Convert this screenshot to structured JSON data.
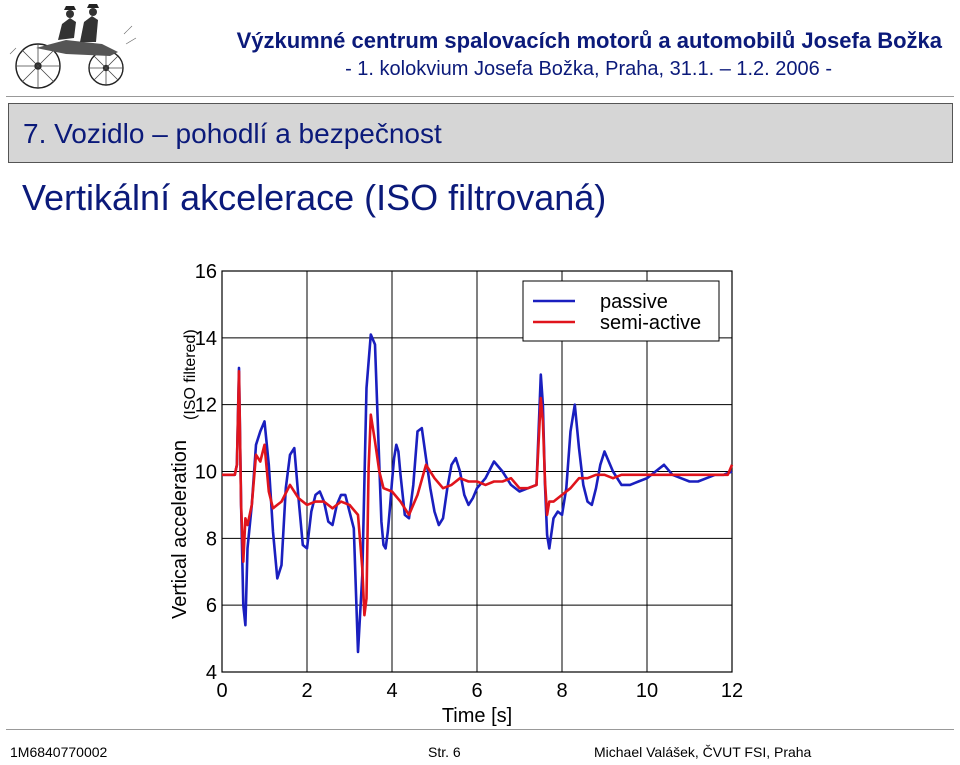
{
  "header": {
    "title": "Výzkumné centrum spalovacích motorů a automobilů Josefa Božka",
    "subtitle": "- 1. kolokvium Josefa Božka, Praha, 31.1. – 1.2. 2006 -"
  },
  "section": {
    "title": "7. Vozidlo – pohodlí a bezpečnost"
  },
  "slide": {
    "title": "Vertikální akcelerace (ISO filtrovaná)"
  },
  "footer": {
    "left": "1M6840770002",
    "center": "Str. 6",
    "right": "Michael Valášek, ČVUT FSI, Praha"
  },
  "colors": {
    "header_text": "#0b1a7a",
    "passive": "#1a1fbf",
    "semi_active": "#e0141c"
  },
  "icons": {
    "logo": "vintage-car-logo-icon"
  },
  "chart_data": {
    "type": "line",
    "title": "",
    "xlabel": "Time [s]",
    "ylabel": "Vertical acceleration",
    "ylabel2": "(ISO filtered)",
    "xlim": [
      0,
      12
    ],
    "ylim": [
      4,
      16
    ],
    "xticks": [
      0,
      2,
      4,
      6,
      8,
      10,
      12
    ],
    "yticks": [
      4,
      6,
      8,
      10,
      12,
      14,
      16
    ],
    "grid": true,
    "legend": "top-right",
    "series": [
      {
        "name": "passive",
        "color": "#1a1fbf",
        "x": [
          0,
          0.3,
          0.35,
          0.4,
          0.45,
          0.5,
          0.55,
          0.6,
          0.7,
          0.8,
          0.9,
          1.0,
          1.1,
          1.2,
          1.3,
          1.4,
          1.5,
          1.6,
          1.7,
          1.8,
          1.9,
          2.0,
          2.1,
          2.2,
          2.3,
          2.4,
          2.5,
          2.6,
          2.7,
          2.8,
          2.9,
          3.0,
          3.1,
          3.2,
          3.3,
          3.4,
          3.5,
          3.6,
          3.7,
          3.75,
          3.8,
          3.85,
          3.9,
          3.95,
          4.0,
          4.05,
          4.1,
          4.15,
          4.2,
          4.3,
          4.4,
          4.5,
          4.6,
          4.7,
          4.8,
          4.9,
          5.0,
          5.1,
          5.2,
          5.3,
          5.4,
          5.5,
          5.6,
          5.7,
          5.8,
          5.9,
          6.0,
          6.2,
          6.4,
          6.6,
          6.8,
          7.0,
          7.2,
          7.4,
          7.5,
          7.55,
          7.6,
          7.65,
          7.7,
          7.8,
          7.9,
          8.0,
          8.1,
          8.2,
          8.3,
          8.4,
          8.5,
          8.6,
          8.7,
          8.8,
          8.9,
          9.0,
          9.2,
          9.4,
          9.6,
          9.8,
          10.0,
          10.2,
          10.4,
          10.6,
          10.8,
          11.0,
          11.2,
          11.4,
          11.6,
          11.8,
          12.0
        ],
        "y": [
          9.9,
          9.9,
          10.2,
          13.1,
          9.0,
          6.0,
          5.4,
          7.7,
          9.0,
          10.8,
          11.2,
          11.5,
          10.2,
          8.2,
          6.8,
          7.2,
          9.5,
          10.5,
          10.7,
          9.2,
          7.8,
          7.7,
          8.8,
          9.3,
          9.4,
          9.1,
          8.5,
          8.4,
          9.0,
          9.3,
          9.3,
          8.8,
          8.3,
          4.6,
          6.9,
          12.5,
          14.1,
          13.8,
          10.2,
          8.5,
          7.8,
          7.7,
          8.2,
          8.9,
          9.7,
          10.4,
          10.8,
          10.6,
          9.9,
          8.7,
          8.6,
          9.6,
          11.2,
          11.3,
          10.4,
          9.5,
          8.8,
          8.4,
          8.6,
          9.5,
          10.2,
          10.4,
          10.0,
          9.3,
          9.0,
          9.2,
          9.5,
          9.8,
          10.3,
          10.0,
          9.6,
          9.4,
          9.5,
          9.6,
          12.9,
          12.0,
          9.6,
          8.1,
          7.7,
          8.6,
          8.8,
          8.7,
          9.5,
          11.2,
          12.0,
          10.7,
          9.6,
          9.1,
          9.0,
          9.5,
          10.2,
          10.6,
          10.0,
          9.6,
          9.6,
          9.7,
          9.8,
          10.0,
          10.2,
          9.9,
          9.8,
          9.7,
          9.7,
          9.8,
          9.9,
          9.9,
          10.0
        ]
      },
      {
        "name": "semi-active",
        "color": "#e0141c",
        "x": [
          0,
          0.3,
          0.35,
          0.4,
          0.45,
          0.5,
          0.55,
          0.6,
          0.7,
          0.8,
          0.9,
          1.0,
          1.1,
          1.2,
          1.3,
          1.4,
          1.6,
          1.8,
          2.0,
          2.2,
          2.4,
          2.6,
          2.8,
          3.0,
          3.2,
          3.3,
          3.35,
          3.4,
          3.45,
          3.5,
          3.6,
          3.7,
          3.8,
          4.0,
          4.2,
          4.4,
          4.6,
          4.8,
          5.0,
          5.2,
          5.4,
          5.6,
          5.8,
          6.0,
          6.2,
          6.4,
          6.6,
          6.8,
          7.0,
          7.2,
          7.4,
          7.5,
          7.55,
          7.6,
          7.65,
          7.7,
          7.8,
          8.0,
          8.2,
          8.4,
          8.6,
          8.8,
          9.0,
          9.2,
          9.4,
          9.6,
          9.8,
          10.0,
          10.5,
          11.0,
          11.5,
          11.9,
          12.0
        ],
        "y": [
          9.9,
          9.9,
          10.2,
          13.0,
          9.0,
          7.3,
          8.6,
          8.4,
          9.0,
          10.5,
          10.3,
          10.8,
          9.4,
          8.9,
          9.0,
          9.1,
          9.6,
          9.2,
          9.0,
          9.1,
          9.1,
          8.9,
          9.1,
          9.0,
          8.7,
          7.1,
          5.7,
          6.2,
          10.1,
          11.7,
          10.9,
          10.0,
          9.5,
          9.4,
          9.1,
          8.7,
          9.3,
          10.2,
          9.8,
          9.5,
          9.6,
          9.8,
          9.7,
          9.7,
          9.6,
          9.7,
          9.7,
          9.8,
          9.5,
          9.5,
          9.6,
          12.2,
          11.5,
          9.7,
          8.7,
          9.1,
          9.1,
          9.3,
          9.5,
          9.8,
          9.8,
          9.9,
          9.9,
          9.8,
          9.9,
          9.9,
          9.9,
          9.9,
          9.9,
          9.9,
          9.9,
          9.9,
          10.2
        ]
      }
    ]
  }
}
